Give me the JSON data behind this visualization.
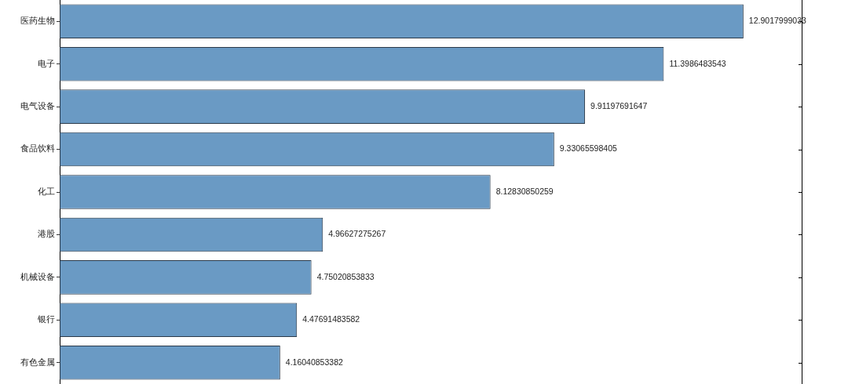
{
  "chart_data": {
    "type": "bar",
    "orientation": "horizontal",
    "categories": [
      "医药生物",
      "电子",
      "电气设备",
      "食品饮料",
      "化工",
      "港股",
      "机械设备",
      "银行",
      "有色金属"
    ],
    "values": [
      12.9017999033,
      11.3986483543,
      9.91197691647,
      9.33065598405,
      8.12830850259,
      4.96627275267,
      4.75020853833,
      4.47691483582,
      4.16040853382
    ],
    "color": "#6a9ac4",
    "xlim": [
      0,
      14
    ],
    "data_labels": true,
    "tick_labels": "y"
  }
}
